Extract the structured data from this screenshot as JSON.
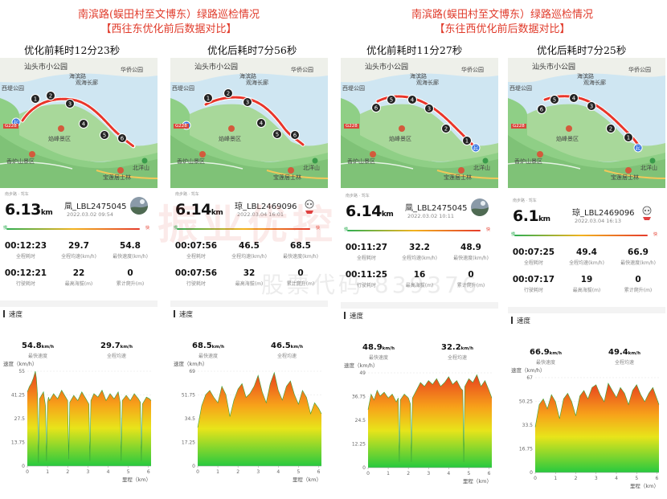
{
  "groups": [
    {
      "title": "南滨路(蜈田村至文博东）绿路巡检情况",
      "subtitle": "【西往东优化前后数据对比】"
    },
    {
      "title": "南滨路(蜈田村至文博东）绿路巡检情况",
      "subtitle": "【东往西优化前后数据对比】"
    }
  ],
  "watermark": {
    "text": "振业优控",
    "sub": "股票代码 839376"
  },
  "map_labels": {
    "city_park": "汕头市小公园",
    "harbor_road": "海滨路",
    "guanhai": "观海长廊",
    "huaqiao_park": "华侨公园",
    "xidi_park": "西堤公园",
    "road_code": "G228",
    "queshi": "焰峰景区",
    "xianglu": "香炉山景区",
    "baolian": "宝莲居士林",
    "beiyangshan": "北洋山",
    "start_marker": "起"
  },
  "panels": [
    {
      "caption": "优化前耗时12分23秒",
      "distance": "6.13",
      "unit": "km",
      "username": "凬_LBL2475045",
      "datetime": "2022.03.02 09:54",
      "tiny_header": "南步路 · 驾车",
      "hr_start": "慢",
      "hr_end": "快",
      "stats": [
        {
          "value": "00:12:23",
          "label": "全程耗时"
        },
        {
          "value": "29.7",
          "label": "全程均速(km/h)"
        },
        {
          "value": "54.8",
          "label": "最快速度(km/h)"
        },
        {
          "value": "00:12:21",
          "label": "行驶耗时"
        },
        {
          "value": "22",
          "label": "最高海拔(m)"
        },
        {
          "value": "0",
          "label": "累计爬升(m)"
        }
      ],
      "speed_title": "速度",
      "summary": [
        {
          "value": "54.8",
          "unit": "km/h",
          "label": "最快速度"
        },
        {
          "value": "29.7",
          "unit": "km/h",
          "label": "全程均速"
        }
      ],
      "chart_data": {
        "type": "area",
        "ylabel": "速度（km/h）",
        "xlabel": "里程（km）",
        "yticks": [
          "0",
          "13.75",
          "27.5",
          "41.25",
          "55"
        ],
        "ylim": [
          0,
          55
        ],
        "xticks": [
          "0",
          "1",
          "2",
          "3",
          "4",
          "5",
          "6"
        ],
        "xlim": [
          0,
          6.13
        ],
        "x": [
          0,
          0.1,
          0.2,
          0.3,
          0.4,
          0.45,
          0.5,
          0.55,
          0.6,
          0.7,
          0.8,
          0.9,
          0.95,
          1,
          1.05,
          1.1,
          1.3,
          1.5,
          1.7,
          1.9,
          2.0,
          2.05,
          2.1,
          2.3,
          2.5,
          2.7,
          2.9,
          3.05,
          3.1,
          3.15,
          3.3,
          3.5,
          3.7,
          3.9,
          4.1,
          4.3,
          4.5,
          4.6,
          4.65,
          4.7,
          4.9,
          5.1,
          5.3,
          5.5,
          5.6,
          5.65,
          5.7,
          5.9,
          6.05,
          6.13
        ],
        "y": [
          43,
          46,
          48,
          51,
          55,
          51,
          42,
          2,
          39,
          41,
          43,
          35,
          3,
          37,
          40,
          38,
          42,
          39,
          44,
          40,
          38,
          4,
          37,
          41,
          38,
          43,
          39,
          36,
          3,
          38,
          42,
          40,
          44,
          38,
          42,
          39,
          43,
          37,
          3,
          38,
          41,
          38,
          42,
          39,
          37,
          3,
          36,
          40,
          39,
          38
        ]
      }
    },
    {
      "caption": "优化后耗时7分56秒",
      "distance": "6.14",
      "unit": "km",
      "username": "琼_LBL2469096",
      "datetime": "2022.03.04 16:01",
      "tiny_header": "南步路 · 驾车",
      "hr_start": "慢",
      "hr_end": "快",
      "stats": [
        {
          "value": "00:07:56",
          "label": "全程耗时"
        },
        {
          "value": "46.5",
          "label": "全程均速(km/h)"
        },
        {
          "value": "68.5",
          "label": "最快速度(km/h)"
        },
        {
          "value": "00:07:56",
          "label": "行驶耗时"
        },
        {
          "value": "32",
          "label": "最高海拔(m)"
        },
        {
          "value": "0",
          "label": "累计爬升(m)"
        }
      ],
      "speed_title": "速度",
      "summary": [
        {
          "value": "68.5",
          "unit": "km/h",
          "label": "最快速度"
        },
        {
          "value": "46.5",
          "unit": "km/h",
          "label": "全程均速"
        }
      ],
      "chart_data": {
        "type": "area",
        "ylabel": "速度（km/h）",
        "xlabel": "里程（km）",
        "yticks": [
          "0",
          "17.25",
          "34.5",
          "51.75",
          "69"
        ],
        "ylim": [
          0,
          69
        ],
        "xticks": [
          "0",
          "1",
          "2",
          "3",
          "4",
          "5",
          "6"
        ],
        "xlim": [
          0,
          6.14
        ],
        "x": [
          0,
          0.2,
          0.4,
          0.6,
          0.8,
          1.0,
          1.2,
          1.4,
          1.6,
          1.8,
          2.0,
          2.2,
          2.4,
          2.6,
          2.8,
          3.0,
          3.2,
          3.4,
          3.6,
          3.8,
          4.0,
          4.2,
          4.4,
          4.6,
          4.8,
          5.0,
          5.2,
          5.4,
          5.6,
          5.8,
          6.0,
          6.14
        ],
        "y": [
          28,
          44,
          52,
          55,
          50,
          46,
          58,
          52,
          36,
          48,
          56,
          60,
          50,
          53,
          58,
          66,
          54,
          46,
          60,
          68,
          55,
          48,
          58,
          62,
          52,
          45,
          55,
          50,
          38,
          46,
          42,
          38
        ]
      }
    },
    {
      "caption": "优化前耗时11分27秒",
      "distance": "6.14",
      "unit": "km",
      "username": "凬_LBL2475045",
      "datetime": "2022.03.02 10:11",
      "tiny_header": "南步路 · 驾车",
      "hr_start": "慢",
      "hr_end": "快",
      "stats": [
        {
          "value": "00:11:27",
          "label": "全程耗时"
        },
        {
          "value": "32.2",
          "label": "全程均速(km/h)"
        },
        {
          "value": "48.9",
          "label": "最快速度(km/h)"
        },
        {
          "value": "00:11:25",
          "label": "行驶耗时"
        },
        {
          "value": "16",
          "label": "最高海拔(m)"
        },
        {
          "value": "0",
          "label": "累计爬升(m)"
        }
      ],
      "speed_title": "速度",
      "summary": [
        {
          "value": "48.9",
          "unit": "km/h",
          "label": "最快速度"
        },
        {
          "value": "32.2",
          "unit": "km/h",
          "label": "全程均速"
        }
      ],
      "chart_data": {
        "type": "area",
        "ylabel": "速度（km/h）",
        "xlabel": "里程（km）",
        "yticks": [
          "0",
          "12.25",
          "24.5",
          "36.75",
          "49"
        ],
        "ylim": [
          0,
          49
        ],
        "xticks": [
          "0",
          "1",
          "2",
          "3",
          "4",
          "5",
          "6"
        ],
        "xlim": [
          0,
          6.14
        ],
        "x": [
          0,
          0.15,
          0.3,
          0.45,
          0.6,
          0.8,
          1.0,
          1.2,
          1.4,
          1.5,
          1.55,
          1.6,
          1.8,
          2.0,
          2.1,
          2.15,
          2.2,
          2.4,
          2.6,
          2.8,
          3.0,
          3.2,
          3.4,
          3.6,
          3.8,
          4.0,
          4.2,
          4.4,
          4.6,
          4.7,
          4.75,
          4.8,
          5.0,
          5.2,
          5.4,
          5.6,
          5.8,
          6.0,
          6.14
        ],
        "y": [
          30,
          38,
          35,
          40,
          37,
          39,
          36,
          38,
          34,
          36,
          3,
          35,
          38,
          36,
          33,
          3,
          36,
          40,
          44,
          42,
          45,
          43,
          46,
          42,
          44,
          47,
          43,
          45,
          41,
          40,
          3,
          42,
          46,
          44,
          48,
          42,
          45,
          40,
          36
        ]
      }
    },
    {
      "caption": "优化后耗时7分25秒",
      "distance": "6.1",
      "unit": "km",
      "username": "琼_LBL2469096",
      "datetime": "2022.03.04 16:13",
      "tiny_header": "南步路 · 驾车",
      "hr_start": "慢",
      "hr_end": "快",
      "stats": [
        {
          "value": "00:07:25",
          "label": "全程耗时"
        },
        {
          "value": "49.4",
          "label": "全程均速(km/h)"
        },
        {
          "value": "66.9",
          "label": "最快速度(km/h)"
        },
        {
          "value": "00:07:17",
          "label": "行驶耗时"
        },
        {
          "value": "19",
          "label": "最高海拔(m)"
        },
        {
          "value": "0",
          "label": "累计爬升(m)"
        }
      ],
      "speed_title": "速度",
      "summary": [
        {
          "value": "66.9",
          "unit": "km/h",
          "label": "最快速度"
        },
        {
          "value": "49.4",
          "unit": "km/h",
          "label": "全程均速"
        }
      ],
      "chart_data": {
        "type": "area",
        "ylabel": "速度（km/h）",
        "xlabel": "里程（km）",
        "yticks": [
          "0",
          "16.75",
          "33.5",
          "50.25",
          "67"
        ],
        "ylim": [
          0,
          67
        ],
        "xticks": [
          "0",
          "1",
          "2",
          "3",
          "4",
          "5",
          "6"
        ],
        "xlim": [
          0,
          6.1
        ],
        "x": [
          0,
          0.2,
          0.4,
          0.6,
          0.8,
          1.0,
          1.2,
          1.4,
          1.6,
          1.8,
          2.0,
          2.2,
          2.4,
          2.6,
          2.8,
          3.0,
          3.2,
          3.4,
          3.6,
          3.8,
          4.0,
          4.2,
          4.4,
          4.6,
          4.8,
          5.0,
          5.2,
          5.4,
          5.6,
          5.8,
          6.0,
          6.1
        ],
        "y": [
          32,
          48,
          52,
          45,
          55,
          50,
          38,
          52,
          56,
          50,
          40,
          54,
          58,
          52,
          60,
          62,
          55,
          50,
          63,
          58,
          53,
          60,
          56,
          48,
          58,
          62,
          55,
          50,
          56,
          60,
          52,
          48
        ]
      }
    }
  ],
  "colors": {
    "accent": "#e03a2a",
    "route": "#e8352a",
    "water": "#cfe6f2",
    "land": "#8fcf86"
  }
}
